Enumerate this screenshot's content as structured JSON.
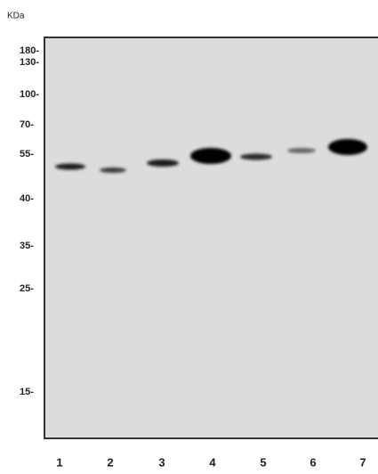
{
  "axis_title": "KDa",
  "markers": [
    "180-",
    "130-",
    "100-",
    "70-",
    "55-",
    "40-",
    "35-",
    "25-",
    "15-"
  ],
  "lanes": [
    "1",
    "2",
    "3",
    "4",
    "5",
    "6",
    "7"
  ]
}
